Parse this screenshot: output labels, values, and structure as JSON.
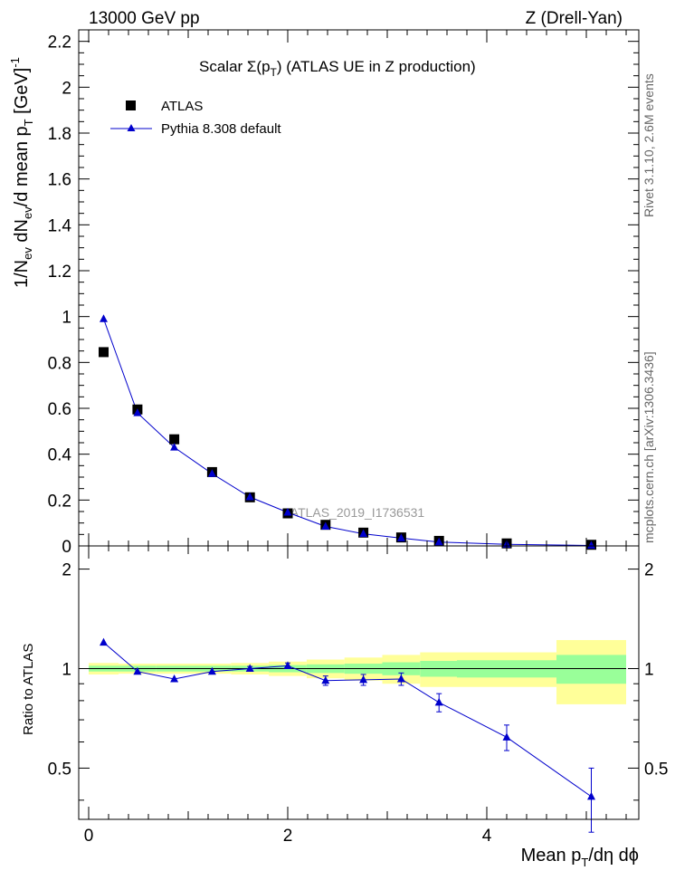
{
  "header": {
    "left": "13000 GeV pp",
    "right": "Z (Drell-Yan)"
  },
  "side_texts": {
    "rivet": "Rivet 3.1.10,  2.6M events",
    "mcplots": "mcplots.cern.ch [arXiv:1306.3436]"
  },
  "watermark": "ATLAS_2019_I1736531",
  "colors": {
    "mc": "#0000cc",
    "data": "#000000",
    "band_inner": "#99ff99",
    "band_outer": "#ffff99"
  },
  "chart_data": [
    {
      "type": "scatter",
      "title": "Scalar Σ(p_T) (ATLAS UE in Z production)",
      "title_main": "Scalar Σ(p",
      "title_sub": "T",
      "title_end": ") (ATLAS UE in Z production)",
      "ylabel": "1/N_ev dN_ev/d mean p_T [GeV]^-1",
      "ylabel_parts": {
        "a": "1/N",
        "b": "ev",
        "c": " dN",
        "d": "ev",
        "e": "/d mean p",
        "f": "T",
        "g": " [GeV]",
        "h": "-1"
      },
      "xlim": [
        -0.2,
        5.6
      ],
      "ylim": [
        0,
        2.25
      ],
      "yticks": [
        "0",
        "0.2",
        "0.4",
        "0.6",
        "0.8",
        "1",
        "1.2",
        "1.4",
        "1.6",
        "1.8",
        "2",
        "2.2"
      ],
      "legend_position": "top-left",
      "series": [
        {
          "name": "ATLAS",
          "marker": "square",
          "x": [
            0.15,
            0.49,
            0.86,
            1.24,
            1.62,
            2.0,
            2.38,
            2.76,
            3.14,
            3.52,
            4.2,
            5.05
          ],
          "y": [
            0.845,
            0.595,
            0.465,
            0.322,
            0.212,
            0.142,
            0.092,
            0.058,
            0.037,
            0.022,
            0.011,
            0.005
          ]
        },
        {
          "name": "Pythia 8.308 default",
          "marker": "triangle",
          "x": [
            0.15,
            0.49,
            0.86,
            1.24,
            1.62,
            2.0,
            2.38,
            2.76,
            3.14,
            3.52,
            4.2,
            5.05
          ],
          "y": [
            0.99,
            0.58,
            0.43,
            0.315,
            0.213,
            0.146,
            0.085,
            0.053,
            0.034,
            0.017,
            0.007,
            0.002
          ]
        }
      ]
    },
    {
      "type": "line",
      "ylabel": "Ratio to ATLAS",
      "xlabel": "Mean p_T/dη dϕ",
      "xlabel_parts": {
        "a": "Mean p",
        "b": "T",
        "c": "/dη dϕ"
      },
      "xlim": [
        -0.2,
        5.6
      ],
      "ylim": [
        0.35,
        2.35
      ],
      "log_y": true,
      "xticks": [
        "0",
        "2",
        "4"
      ],
      "yticks": [
        "0.5",
        "1",
        "2"
      ],
      "ratio": {
        "x": [
          0.15,
          0.49,
          0.86,
          1.24,
          1.62,
          2.0,
          2.38,
          2.76,
          3.14,
          3.52,
          4.2,
          5.05
        ],
        "y": [
          1.2,
          0.98,
          0.93,
          0.98,
          1.0,
          1.02,
          0.92,
          0.925,
          0.93,
          0.79,
          0.62,
          0.41
        ],
        "err": [
          0.0,
          0.0,
          0.0,
          0.0,
          0.015,
          0.02,
          0.03,
          0.035,
          0.04,
          0.05,
          0.055,
          0.09
        ]
      },
      "bands": {
        "edges": [
          0.0,
          0.3,
          0.68,
          1.05,
          1.43,
          1.81,
          2.19,
          2.57,
          2.95,
          3.33,
          3.7,
          4.7,
          5.4
        ],
        "inner": [
          0.02,
          0.02,
          0.02,
          0.02,
          0.02,
          0.025,
          0.03,
          0.035,
          0.045,
          0.055,
          0.06,
          0.1
        ],
        "outer": [
          0.04,
          0.035,
          0.035,
          0.035,
          0.04,
          0.05,
          0.065,
          0.08,
          0.1,
          0.12,
          0.12,
          0.22
        ]
      }
    }
  ]
}
